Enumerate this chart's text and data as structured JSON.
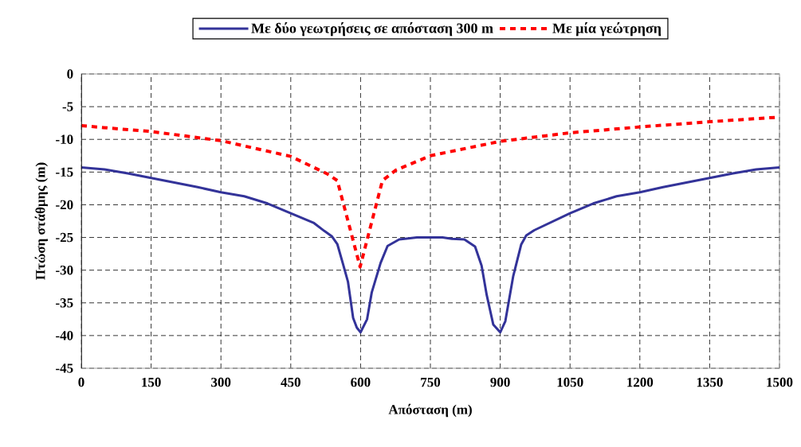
{
  "chart_data": {
    "type": "line",
    "xlabel": "Απόσταση (m)",
    "ylabel": "Πτώση στάθμης (m)",
    "xlim": [
      0,
      1500
    ],
    "xticks": [
      0,
      150,
      300,
      450,
      600,
      750,
      900,
      1050,
      1200,
      1350,
      1500
    ],
    "ylim": [
      -45,
      0
    ],
    "yticks": [
      0,
      -5,
      -10,
      -15,
      -20,
      -25,
      -30,
      -35,
      -40,
      -45
    ],
    "grid": true,
    "legend": "top",
    "marker": "none",
    "series": [
      {
        "name": "Με δύο γεωτρήσεις σε απόσταση 300 m",
        "color": "#333399",
        "line_style": "solid",
        "x": [
          0,
          50,
          100,
          150,
          200,
          250,
          300,
          350,
          400,
          450,
          500,
          522,
          538,
          550,
          562,
          573,
          584,
          592,
          600,
          614,
          624,
          643,
          658,
          683,
          721,
          750,
          776,
          796,
          823,
          846,
          860,
          871,
          885,
          900,
          911,
          928,
          945,
          956,
          973,
          1050,
          1100,
          1150,
          1200,
          1250,
          1300,
          1350,
          1400,
          1450,
          1500
        ],
        "values": [
          -14.3,
          -14.6,
          -15.2,
          -15.9,
          -16.6,
          -17.3,
          -18.1,
          -18.7,
          -19.8,
          -21.3,
          -22.8,
          -24.0,
          -24.8,
          -26.0,
          -29.0,
          -31.8,
          -37.3,
          -38.8,
          -39.5,
          -37.5,
          -33.4,
          -28.9,
          -26.3,
          -25.3,
          -25.0,
          -25.0,
          -25.0,
          -25.2,
          -25.3,
          -26.4,
          -29.3,
          -33.8,
          -38.3,
          -39.5,
          -37.8,
          -30.9,
          -26.1,
          -24.7,
          -23.9,
          -21.3,
          -19.8,
          -18.7,
          -18.1,
          -17.3,
          -16.6,
          -15.9,
          -15.2,
          -14.6,
          -14.3
        ]
      },
      {
        "name": "Με μία γεώτρηση",
        "color": "#ff0000",
        "line_style": "dashed",
        "x": [
          0,
          48,
          150,
          300,
          450,
          529,
          550,
          599,
          647,
          676,
          750,
          900,
          1050,
          1200,
          1350,
          1500
        ],
        "values": [
          -7.9,
          -8.2,
          -8.8,
          -10.2,
          -12.6,
          -15.3,
          -16.3,
          -29.5,
          -16.3,
          -14.7,
          -12.5,
          -10.3,
          -9.0,
          -8.1,
          -7.3,
          -6.6
        ]
      }
    ]
  }
}
